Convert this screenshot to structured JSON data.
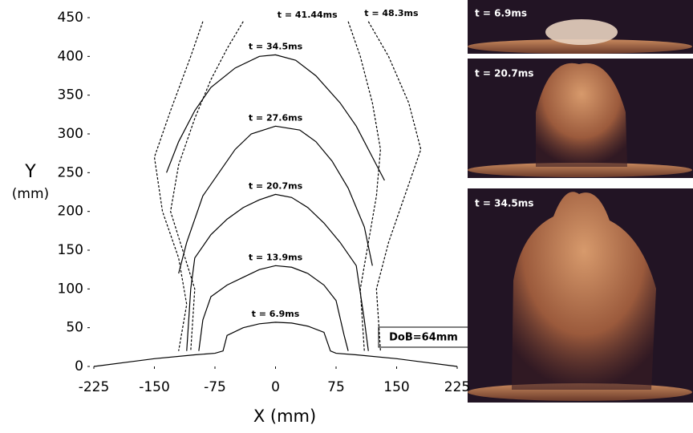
{
  "chart_data": {
    "type": "line",
    "xlabel": "X (mm)",
    "ylabel": "Y",
    "ylabel_unit": "(mm)",
    "xlim": [
      -225,
      225
    ],
    "ylim": [
      0,
      450
    ],
    "xticks": [
      -225,
      -150,
      -75,
      0,
      75,
      150,
      225
    ],
    "yticks": [
      0,
      50,
      100,
      150,
      200,
      250,
      300,
      350,
      400,
      450
    ],
    "annotation": "DoB=64mm",
    "series": [
      {
        "name": "t = 6.9ms",
        "color": "#000000",
        "x": [
          -225,
          -180,
          -150,
          -100,
          -75,
          -65,
          -60,
          -40,
          -20,
          0,
          20,
          40,
          60,
          68,
          75,
          100,
          150,
          180,
          225
        ],
        "values": [
          0,
          6,
          10,
          15,
          17,
          20,
          40,
          50,
          55,
          57,
          56,
          52,
          44,
          20,
          17,
          15,
          10,
          6,
          0
        ]
      },
      {
        "name": "t = 13.9ms",
        "color": "#000000",
        "x": [
          -95,
          -90,
          -80,
          -60,
          -40,
          -20,
          0,
          20,
          40,
          60,
          75,
          85,
          90
        ],
        "values": [
          20,
          60,
          90,
          105,
          115,
          125,
          130,
          128,
          120,
          105,
          85,
          40,
          20
        ]
      },
      {
        "name": "t = 20.7ms",
        "color": "#000000",
        "x": [
          -110,
          -105,
          -100,
          -80,
          -60,
          -40,
          -20,
          0,
          20,
          40,
          60,
          80,
          100,
          110,
          115
        ],
        "values": [
          20,
          100,
          140,
          170,
          190,
          205,
          215,
          222,
          218,
          205,
          185,
          160,
          130,
          60,
          20
        ]
      },
      {
        "name": "t = 27.6ms",
        "color": "#000000",
        "x": [
          -120,
          -110,
          -90,
          -70,
          -50,
          -30,
          0,
          30,
          50,
          70,
          90,
          110,
          120
        ],
        "values": [
          120,
          160,
          220,
          250,
          280,
          300,
          310,
          305,
          290,
          265,
          230,
          180,
          130
        ]
      },
      {
        "name": "t = 34.5ms",
        "color": "#000000",
        "x": [
          -135,
          -120,
          -100,
          -80,
          -50,
          -20,
          0,
          25,
          50,
          80,
          100,
          120,
          135
        ],
        "values": [
          250,
          290,
          330,
          360,
          385,
          400,
          402,
          395,
          375,
          340,
          310,
          270,
          240
        ]
      },
      {
        "name": "t = 41.44ms",
        "color": "#000000",
        "x": [
          -40,
          -60,
          -80,
          -100,
          -120,
          -130,
          -115,
          -100,
          -105,
          null,
          90,
          105,
          120,
          130,
          125,
          115,
          105,
          110
        ],
        "values": [
          445,
          410,
          370,
          320,
          260,
          200,
          150,
          100,
          20,
          null,
          445,
          400,
          340,
          280,
          220,
          160,
          100,
          20
        ]
      },
      {
        "name": "t = 48.3ms",
        "color": "#000000",
        "x": [
          -90,
          -105,
          -130,
          -150,
          -140,
          -120,
          -110,
          -120,
          null,
          115,
          140,
          165,
          180,
          160,
          140,
          125,
          130
        ],
        "values": [
          445,
          400,
          330,
          270,
          200,
          140,
          80,
          20,
          null,
          445,
          400,
          340,
          280,
          220,
          160,
          100,
          20
        ]
      }
    ]
  },
  "panels": [
    {
      "label": "t = 6.9ms"
    },
    {
      "label": "t = 20.7ms"
    },
    {
      "label": "t = 34.5ms"
    }
  ]
}
